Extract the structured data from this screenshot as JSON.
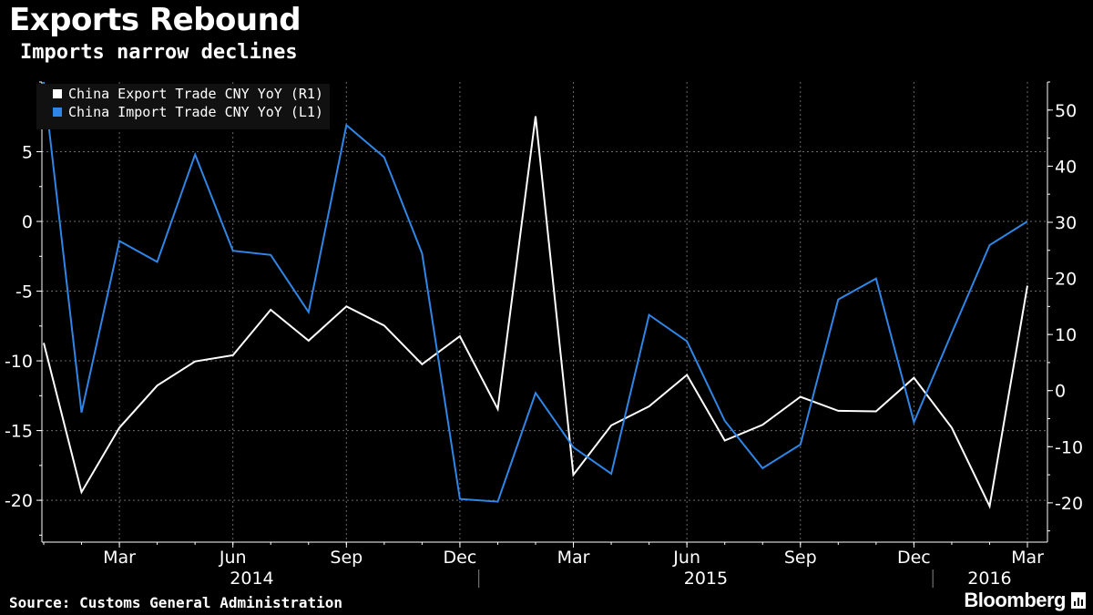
{
  "title": "Exports Rebound",
  "subtitle": "Imports narrow declines",
  "source": "Source: Customs General Administration",
  "brand": "Bloomberg",
  "colors": {
    "background": "#000000",
    "export": "#ffffff",
    "import": "#2f86e6",
    "grid": "#6a6a6a"
  },
  "chart_data": {
    "type": "line",
    "x": [
      "2014-01",
      "2014-02",
      "2014-03",
      "2014-04",
      "2014-05",
      "2014-06",
      "2014-07",
      "2014-08",
      "2014-09",
      "2014-10",
      "2014-11",
      "2014-12",
      "2015-01",
      "2015-02",
      "2015-03",
      "2015-04",
      "2015-05",
      "2015-06",
      "2015-07",
      "2015-08",
      "2015-09",
      "2015-10",
      "2015-11",
      "2015-12",
      "2016-01",
      "2016-02",
      "2016-03"
    ],
    "x_tick_labels": [
      "Mar",
      "Jun",
      "Sep",
      "Dec",
      "Mar",
      "Jun",
      "Sep",
      "Dec",
      "Mar"
    ],
    "x_tick_dates": [
      "2014-03",
      "2014-06",
      "2014-09",
      "2014-12",
      "2015-03",
      "2015-06",
      "2015-09",
      "2015-12",
      "2016-03"
    ],
    "year_labels": [
      "2014",
      "2015",
      "2016"
    ],
    "series": [
      {
        "name": "China Export Trade CNY YoY  (R1)",
        "axis": "right",
        "color": "#ffffff",
        "values": [
          8.5,
          -18.1,
          -6.6,
          0.9,
          5.2,
          6.3,
          14.4,
          8.9,
          15.0,
          11.6,
          4.7,
          9.7,
          -3.3,
          48.9,
          -15.0,
          -6.2,
          -2.8,
          2.8,
          -8.9,
          -6.1,
          -1.1,
          -3.6,
          -3.7,
          2.3,
          -6.6,
          -20.6,
          18.7
        ]
      },
      {
        "name": "China Import Trade CNY YoY  (L1)",
        "axis": "left",
        "color": "#2f86e6",
        "values": [
          10.0,
          -13.7,
          -1.4,
          -2.9,
          4.8,
          -2.1,
          -2.4,
          -6.5,
          6.9,
          4.6,
          -2.3,
          -19.9,
          -20.1,
          -12.3,
          -16.2,
          -18.1,
          -6.7,
          -8.6,
          -14.3,
          -17.7,
          -16.0,
          -5.6,
          -4.1,
          -14.4,
          -8.0,
          -1.7,
          0
        ]
      }
    ],
    "left_axis": {
      "ylim": [
        -23,
        10
      ],
      "ticks": [
        5,
        0,
        -5,
        -10,
        -15,
        -20
      ]
    },
    "right_axis": {
      "ylim": [
        -27,
        55
      ],
      "ticks": [
        50,
        40,
        30,
        20,
        10,
        0,
        -10,
        -20
      ]
    },
    "grid": true,
    "legend_position": "top-left"
  }
}
